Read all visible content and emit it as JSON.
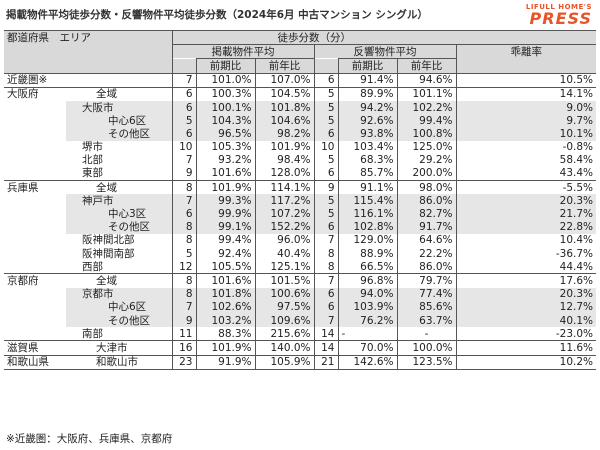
{
  "title": "掲載物件平均徒歩分数・反響物件平均徒歩分数（2024年6月 中古マンション シングル）",
  "logo": {
    "top": "LIFULL HOME'S",
    "main": "PRESS"
  },
  "headers": {
    "region": "都道府県　エリア",
    "walk": "徒歩分数（分）",
    "listed": "掲載物件平均",
    "inquired": "反響物件平均",
    "gap": "乖離率",
    "prev_period": "前期比",
    "prev_year": "前年比"
  },
  "rows": [
    {
      "pref": "近畿圏※",
      "area": "",
      "lv": 0,
      "l": "7",
      "lp": "101.0%",
      "ly": "107.0%",
      "r": "6",
      "rp": "91.4%",
      "ry": "94.6%",
      "g": "10.5%"
    },
    {
      "pref": "大阪府",
      "area": "全域",
      "lv": 0,
      "l": "6",
      "lp": "100.3%",
      "ly": "104.5%",
      "r": "5",
      "rp": "89.9%",
      "ry": "101.1%",
      "g": "14.1%"
    },
    {
      "pref": "",
      "area": "大阪市",
      "lv": 1,
      "l": "6",
      "lp": "100.1%",
      "ly": "101.8%",
      "r": "5",
      "rp": "94.2%",
      "ry": "102.2%",
      "g": "9.0%"
    },
    {
      "pref": "",
      "area": "中心6区",
      "lv": 2,
      "l": "5",
      "lp": "104.3%",
      "ly": "104.6%",
      "r": "5",
      "rp": "92.6%",
      "ry": "99.4%",
      "g": "9.7%"
    },
    {
      "pref": "",
      "area": "その他区",
      "lv": 2,
      "l": "6",
      "lp": "96.5%",
      "ly": "98.2%",
      "r": "6",
      "rp": "93.8%",
      "ry": "100.8%",
      "g": "10.1%"
    },
    {
      "pref": "",
      "area": "堺市",
      "lv": 1,
      "l": "10",
      "lp": "105.3%",
      "ly": "101.9%",
      "r": "10",
      "rp": "103.4%",
      "ry": "125.0%",
      "g": "-0.8%"
    },
    {
      "pref": "",
      "area": "北部",
      "lv": 1,
      "l": "7",
      "lp": "93.2%",
      "ly": "98.4%",
      "r": "5",
      "rp": "68.3%",
      "ry": "29.2%",
      "g": "58.4%"
    },
    {
      "pref": "",
      "area": "東部",
      "lv": 1,
      "l": "9",
      "lp": "101.6%",
      "ly": "128.0%",
      "r": "6",
      "rp": "85.7%",
      "ry": "200.0%",
      "g": "43.4%"
    },
    {
      "pref": "兵庫県",
      "area": "全域",
      "lv": 0,
      "l": "8",
      "lp": "101.9%",
      "ly": "114.1%",
      "r": "9",
      "rp": "91.1%",
      "ry": "98.0%",
      "g": "-5.5%"
    },
    {
      "pref": "",
      "area": "神戸市",
      "lv": 1,
      "l": "7",
      "lp": "99.3%",
      "ly": "117.2%",
      "r": "5",
      "rp": "115.4%",
      "ry": "86.0%",
      "g": "20.3%"
    },
    {
      "pref": "",
      "area": "中心3区",
      "lv": 2,
      "l": "6",
      "lp": "99.9%",
      "ly": "107.2%",
      "r": "5",
      "rp": "116.1%",
      "ry": "82.7%",
      "g": "21.7%"
    },
    {
      "pref": "",
      "area": "その他区",
      "lv": 2,
      "l": "8",
      "lp": "99.1%",
      "ly": "152.2%",
      "r": "6",
      "rp": "102.8%",
      "ry": "91.7%",
      "g": "22.8%"
    },
    {
      "pref": "",
      "area": "阪神間北部",
      "lv": 1,
      "l": "8",
      "lp": "99.4%",
      "ly": "96.0%",
      "r": "7",
      "rp": "129.0%",
      "ry": "64.6%",
      "g": "10.4%"
    },
    {
      "pref": "",
      "area": "阪神間南部",
      "lv": 1,
      "l": "5",
      "lp": "92.4%",
      "ly": "40.4%",
      "r": "8",
      "rp": "88.9%",
      "ry": "22.2%",
      "g": "-36.7%"
    },
    {
      "pref": "",
      "area": "西部",
      "lv": 1,
      "l": "12",
      "lp": "105.5%",
      "ly": "125.1%",
      "r": "8",
      "rp": "66.5%",
      "ry": "86.0%",
      "g": "44.4%"
    },
    {
      "pref": "京都府",
      "area": "全域",
      "lv": 0,
      "l": "8",
      "lp": "101.6%",
      "ly": "101.5%",
      "r": "7",
      "rp": "96.8%",
      "ry": "79.7%",
      "g": "17.6%"
    },
    {
      "pref": "",
      "area": "京都市",
      "lv": 1,
      "l": "8",
      "lp": "101.8%",
      "ly": "100.6%",
      "r": "6",
      "rp": "94.0%",
      "ry": "77.4%",
      "g": "20.3%"
    },
    {
      "pref": "",
      "area": "中心6区",
      "lv": 2,
      "l": "7",
      "lp": "102.6%",
      "ly": "97.5%",
      "r": "6",
      "rp": "103.9%",
      "ry": "85.6%",
      "g": "12.7%"
    },
    {
      "pref": "",
      "area": "その他区",
      "lv": 2,
      "l": "9",
      "lp": "103.2%",
      "ly": "109.6%",
      "r": "7",
      "rp": "76.2%",
      "ry": "63.7%",
      "g": "40.1%"
    },
    {
      "pref": "",
      "area": "南部",
      "lv": 1,
      "l": "11",
      "lp": "88.3%",
      "ly": "215.6%",
      "r": "14",
      "rp": "-",
      "ry": "-",
      "g": "-23.0%"
    },
    {
      "pref": "滋賀県",
      "area": "大津市",
      "lv": 0,
      "l": "16",
      "lp": "101.9%",
      "ly": "140.0%",
      "r": "14",
      "rp": "70.0%",
      "ry": "100.0%",
      "g": "11.6%"
    },
    {
      "pref": "和歌山県",
      "area": "和歌山市",
      "lv": 0,
      "l": "23",
      "lp": "91.9%",
      "ly": "105.9%",
      "r": "21",
      "rp": "142.6%",
      "ry": "123.5%",
      "g": "10.2%"
    }
  ],
  "note": "※近畿圏：大阪府、兵庫県、京都府"
}
